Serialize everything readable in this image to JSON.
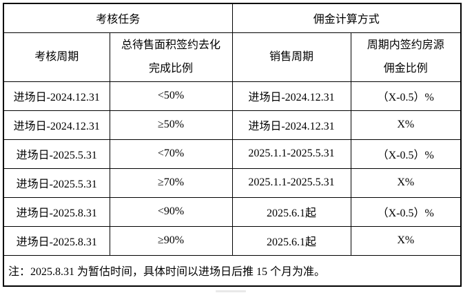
{
  "table": {
    "groups": [
      "考核任务",
      "佣金计算方式"
    ],
    "columns": [
      {
        "lines": [
          "考核周期"
        ]
      },
      {
        "lines": [
          "总待售面积签约去化",
          "完成比例"
        ]
      },
      {
        "lines": [
          "销售周期"
        ]
      },
      {
        "lines": [
          "周期内签约房源",
          "佣金比例"
        ]
      }
    ],
    "rows": [
      [
        "进场日-2024.12.31",
        "<50%",
        "进场日-2024.12.31",
        "（X-0.5）%"
      ],
      [
        "进场日-2024.12.31",
        "≥50%",
        "进场日-2024.12.31",
        "X%"
      ],
      [
        "进场日-2025.5.31",
        "<70%",
        "2025.1.1-2025.5.31",
        "（X-0.5）%"
      ],
      [
        "进场日-2025.5.31",
        "≥70%",
        "2025.1.1-2025.5.31",
        "X%"
      ],
      [
        "进场日-2025.8.31",
        "<90%",
        "2025.6.1起",
        "（X-0.5）%"
      ],
      [
        "进场日-2025.8.31",
        "≥90%",
        "2025.6.1起",
        "X%"
      ]
    ],
    "note": "注：2025.8.31 为暂估时间，具体时间以进场日后推 15 个月为准。"
  },
  "colors": {
    "border": "#000000",
    "background": "#ffffff",
    "text": "#000000"
  }
}
